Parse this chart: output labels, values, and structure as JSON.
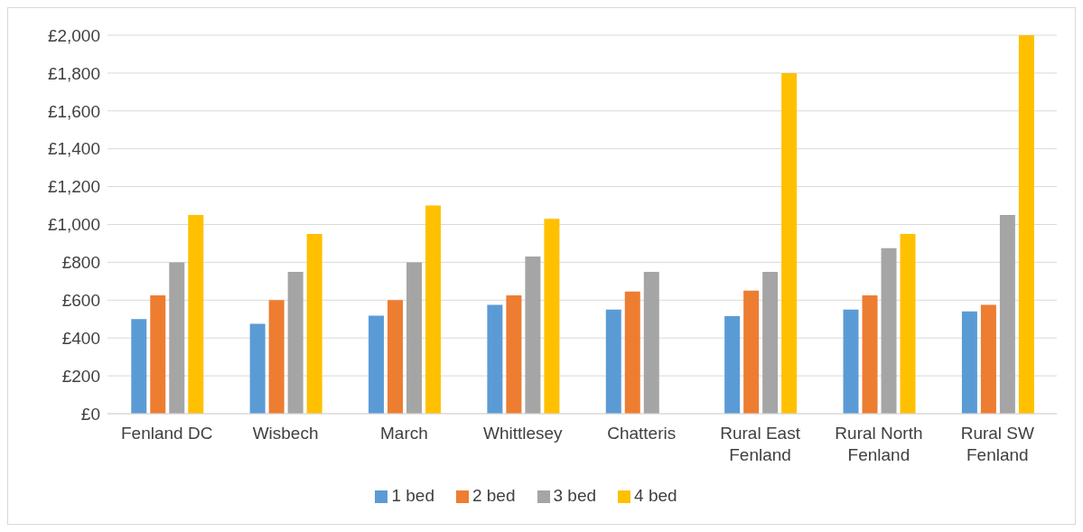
{
  "chart_data": {
    "type": "bar",
    "categories": [
      "Fenland DC",
      "Wisbech",
      "March",
      "Whittlesey",
      "Chatteris",
      "Rural East Fenland",
      "Rural North Fenland",
      "Rural SW Fenland"
    ],
    "series": [
      {
        "name": "1 bed",
        "color": "#5b9bd5",
        "values": [
          500,
          475,
          518,
          575,
          550,
          515,
          550,
          540
        ]
      },
      {
        "name": "2 bed",
        "color": "#ed7d31",
        "values": [
          625,
          600,
          600,
          625,
          645,
          650,
          625,
          575
        ]
      },
      {
        "name": "3 bed",
        "color": "#a5a5a5",
        "values": [
          800,
          750,
          800,
          830,
          750,
          750,
          875,
          1050
        ]
      },
      {
        "name": "4 bed",
        "color": "#ffc000",
        "values": [
          1050,
          950,
          1100,
          1030,
          null,
          1800,
          950,
          2000
        ]
      }
    ],
    "ylim": [
      0,
      2000
    ],
    "yticks": [
      {
        "value": 0,
        "label": "£0"
      },
      {
        "value": 200,
        "label": "£200"
      },
      {
        "value": 400,
        "label": "£400"
      },
      {
        "value": 600,
        "label": "£600"
      },
      {
        "value": 800,
        "label": "£800"
      },
      {
        "value": 1000,
        "label": "£1,000"
      },
      {
        "value": 1200,
        "label": "£1,200"
      },
      {
        "value": 1400,
        "label": "£1,400"
      },
      {
        "value": 1600,
        "label": "£1,600"
      },
      {
        "value": 1800,
        "label": "£1,800"
      },
      {
        "value": 2000,
        "label": "£2,000"
      }
    ],
    "grid": "y",
    "legend": "bottom"
  }
}
